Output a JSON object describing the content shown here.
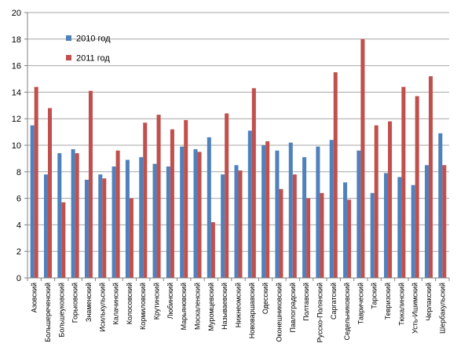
{
  "chart_data": {
    "type": "bar",
    "title": "",
    "xlabel": "",
    "ylabel": "",
    "ylim": [
      0,
      20
    ],
    "yticks": [
      0,
      2,
      4,
      6,
      8,
      10,
      12,
      14,
      16,
      18,
      20
    ],
    "grid": true,
    "legend_position": "top-left",
    "categories": [
      "Азовский",
      "Большереченский",
      "Большеуковский",
      "Горьковский",
      "Знаменский",
      "Исилькульский",
      "Калачинский",
      "Колосовский",
      "Кормиловский",
      "Крутинский",
      "Любинский",
      "Марьяновский",
      "Москаленский",
      "Муромцевский",
      "Называевский",
      "Нижнеомский",
      "Нововаршавский",
      "Одесский",
      "Оконешниковский",
      "Павлоградский",
      "Полтавский",
      "Русско-Полянский",
      "Саргатский",
      "Седельниковский",
      "Таврический",
      "Тарский",
      "Тевризский",
      "Тюкалинский",
      "Усть-Ишимский",
      "Черлакский",
      "Шербакульский"
    ],
    "series": [
      {
        "name": "2010 год",
        "color": "#4F81BD",
        "values": [
          11.5,
          7.8,
          9.4,
          9.7,
          7.4,
          7.8,
          8.4,
          8.9,
          9.1,
          8.6,
          8.4,
          9.9,
          9.7,
          10.6,
          7.8,
          8.5,
          11.1,
          10.0,
          9.6,
          10.2,
          9.1,
          9.9,
          10.4,
          7.2,
          9.6,
          6.4,
          7.9,
          7.6,
          7.0,
          8.5,
          10.9
        ]
      },
      {
        "name": "2011 год",
        "color": "#C0504D",
        "values": [
          14.4,
          12.8,
          5.7,
          9.4,
          14.1,
          7.5,
          9.6,
          6.0,
          11.7,
          12.3,
          11.2,
          11.9,
          9.5,
          4.2,
          12.4,
          8.1,
          14.3,
          10.3,
          6.7,
          7.8,
          6.0,
          6.4,
          15.5,
          5.9,
          18.0,
          11.5,
          11.8,
          14.4,
          13.7,
          15.2,
          8.5
        ]
      }
    ]
  }
}
